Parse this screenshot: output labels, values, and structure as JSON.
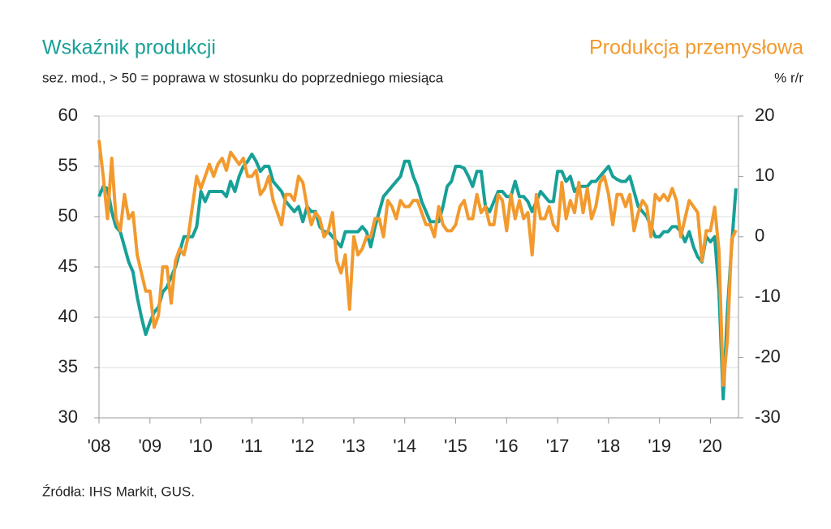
{
  "chart_data": {
    "type": "line",
    "ylabel": "Wskaźnik produkcji",
    "subtitle": "sez. mod., > 50 = poprawa w stosunku do poprzedniego miesiąca",
    "y2label": "Produkcja przemysłowa",
    "y2unit": "% r/r",
    "source": "Źródła: IHS Markit, GUS.",
    "xlim": [
      2008,
      2020.55
    ],
    "xticks": [
      {
        "value": 2008,
        "label": "'08"
      },
      {
        "value": 2009,
        "label": "'09"
      },
      {
        "value": 2010,
        "label": "'10"
      },
      {
        "value": 2011,
        "label": "'11"
      },
      {
        "value": 2012,
        "label": "'12"
      },
      {
        "value": 2013,
        "label": "'13"
      },
      {
        "value": 2014,
        "label": "'14"
      },
      {
        "value": 2015,
        "label": "'15"
      },
      {
        "value": 2016,
        "label": "'16"
      },
      {
        "value": 2017,
        "label": "'17"
      },
      {
        "value": 2018,
        "label": "'18"
      },
      {
        "value": 2019,
        "label": "'19"
      },
      {
        "value": 2020,
        "label": "'20"
      }
    ],
    "ylim": [
      30,
      60
    ],
    "yticks": [
      30,
      35,
      40,
      45,
      50,
      55,
      60
    ],
    "y2lim": [
      -30,
      20
    ],
    "y2ticks": [
      -30,
      -20,
      -10,
      0,
      10,
      20
    ],
    "grid": true,
    "x": [
      2008,
      2008.083,
      2008.167,
      2008.25,
      2008.333,
      2008.417,
      2008.5,
      2008.583,
      2008.667,
      2008.75,
      2008.833,
      2008.917,
      2009,
      2009.083,
      2009.167,
      2009.25,
      2009.333,
      2009.417,
      2009.5,
      2009.583,
      2009.667,
      2009.75,
      2009.833,
      2009.917,
      2010,
      2010.083,
      2010.167,
      2010.25,
      2010.333,
      2010.417,
      2010.5,
      2010.583,
      2010.667,
      2010.75,
      2010.833,
      2010.917,
      2011,
      2011.083,
      2011.167,
      2011.25,
      2011.333,
      2011.417,
      2011.5,
      2011.583,
      2011.667,
      2011.75,
      2011.833,
      2011.917,
      2012,
      2012.083,
      2012.167,
      2012.25,
      2012.333,
      2012.417,
      2012.5,
      2012.583,
      2012.667,
      2012.75,
      2012.833,
      2012.917,
      2013,
      2013.083,
      2013.167,
      2013.25,
      2013.333,
      2013.417,
      2013.5,
      2013.583,
      2013.667,
      2013.75,
      2013.833,
      2013.917,
      2014,
      2014.083,
      2014.167,
      2014.25,
      2014.333,
      2014.417,
      2014.5,
      2014.583,
      2014.667,
      2014.75,
      2014.833,
      2014.917,
      2015,
      2015.083,
      2015.167,
      2015.25,
      2015.333,
      2015.417,
      2015.5,
      2015.583,
      2015.667,
      2015.75,
      2015.833,
      2015.917,
      2016,
      2016.083,
      2016.167,
      2016.25,
      2016.333,
      2016.417,
      2016.5,
      2016.583,
      2016.667,
      2016.75,
      2016.833,
      2016.917,
      2017,
      2017.083,
      2017.167,
      2017.25,
      2017.333,
      2017.417,
      2017.5,
      2017.583,
      2017.667,
      2017.75,
      2017.833,
      2017.917,
      2018,
      2018.083,
      2018.167,
      2018.25,
      2018.333,
      2018.417,
      2018.5,
      2018.583,
      2018.667,
      2018.75,
      2018.833,
      2018.917,
      2019,
      2019.083,
      2019.167,
      2019.25,
      2019.333,
      2019.417,
      2019.5,
      2019.583,
      2019.667,
      2019.75,
      2019.833,
      2019.917,
      2020,
      2020.083,
      2020.167,
      2020.25,
      2020.333,
      2020.417,
      2020.5
    ],
    "series": [
      {
        "name": "Wskaźnik produkcji",
        "color": "#17a097",
        "values": [
          52,
          53,
          52.8,
          50.5,
          49,
          48.5,
          47,
          45.5,
          44.5,
          42,
          40,
          38.3,
          39.5,
          40.5,
          41,
          42.5,
          43,
          44,
          45,
          46.5,
          48,
          48,
          48,
          49,
          52.5,
          51.5,
          52.5,
          52.5,
          52.5,
          52.5,
          52,
          53.5,
          52.5,
          54,
          55,
          55.5,
          56.2,
          55.5,
          54.5,
          55,
          55,
          53.5,
          53,
          52.5,
          51.5,
          51,
          50.5,
          51,
          49.5,
          51,
          50.5,
          50.5,
          49,
          48.5,
          48.5,
          48,
          47.5,
          47,
          48.5,
          48.5,
          48.5,
          48.5,
          49,
          48.5,
          47,
          49,
          50.5,
          52,
          52.5,
          53,
          53.5,
          54,
          55.5,
          55.5,
          54,
          53,
          51.5,
          50.5,
          49.5,
          49.5,
          49.5,
          51,
          53,
          53.5,
          55,
          55,
          54.8,
          54,
          53,
          54.5,
          54.5,
          51,
          50.5,
          51.5,
          52.5,
          52.5,
          52,
          52,
          53.5,
          52,
          52,
          51.5,
          50.5,
          51.5,
          52.5,
          52,
          51.5,
          51.5,
          54.5,
          54.5,
          53.5,
          54,
          52.5,
          53,
          53,
          53,
          53.5,
          53.5,
          54,
          54.5,
          55,
          54,
          53.7,
          53.5,
          53.5,
          54,
          52.5,
          51,
          50.5,
          50,
          49,
          48,
          48,
          48.5,
          48.5,
          49,
          49,
          48.5,
          47.5,
          48.5,
          47,
          46,
          45.5,
          48,
          47.5,
          48,
          42.5,
          31.9,
          40.6,
          47.2,
          52.8
        ]
      },
      {
        "name": "Produkcja przemysłowa",
        "color": "#f29a2e",
        "axis": "y2",
        "values": [
          16,
          10,
          3,
          13,
          3,
          1,
          7,
          3,
          4,
          -3,
          -6,
          -9,
          -9,
          -15,
          -13,
          -5,
          -5,
          -11,
          -4,
          -2,
          -3,
          0,
          5,
          10,
          8,
          10,
          12,
          10,
          12,
          13,
          11,
          14,
          13,
          12,
          13,
          10,
          10,
          11,
          7,
          8,
          10,
          6,
          4,
          2,
          7,
          7,
          6,
          10,
          9,
          5,
          2,
          4,
          3,
          0,
          1,
          4,
          -4,
          -6,
          -3,
          -12,
          0,
          -3,
          -2,
          0,
          0,
          3,
          3,
          0,
          6,
          5,
          3,
          6,
          5,
          5,
          6,
          6,
          4,
          2,
          2,
          0,
          5,
          2,
          1,
          1,
          2,
          5,
          6,
          3,
          3,
          7,
          4,
          5,
          2,
          2,
          7,
          6,
          1,
          7,
          3,
          6,
          3,
          4,
          -3,
          7,
          3,
          3,
          5,
          2,
          1,
          9,
          3,
          6,
          4,
          9,
          4,
          8,
          3,
          5,
          9,
          10,
          7,
          2,
          7,
          7,
          5,
          7,
          1,
          4,
          6,
          5,
          0,
          7,
          6,
          7,
          6,
          8,
          6,
          0,
          3,
          6,
          5,
          4,
          -4,
          1,
          1,
          4.9,
          -2.3,
          -24.6,
          -17,
          -0.4,
          1.1
        ]
      }
    ]
  }
}
